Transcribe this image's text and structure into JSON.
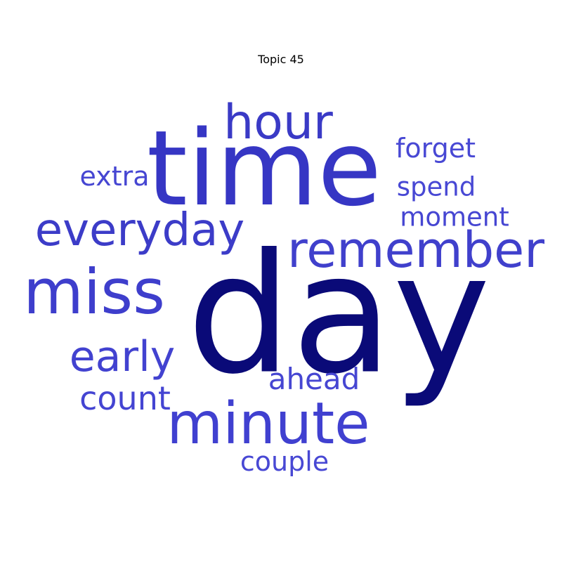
{
  "title": "Topic 45",
  "colors": {
    "primary": "#0a0a78",
    "secondary": "#3c3cc8",
    "tertiary": "#4646d2"
  },
  "words": {
    "day": "day",
    "time": "time",
    "remember": "remember",
    "miss": "miss",
    "minute": "minute",
    "everyday": "everyday",
    "hour": "hour",
    "early": "early",
    "count": "count",
    "ahead": "ahead",
    "extra": "extra",
    "forget": "forget",
    "spend": "spend",
    "moment": "moment",
    "couple": "couple"
  },
  "word_colors": {
    "day": "#0a0a78",
    "time": "#3636c4",
    "remember": "#4040cc",
    "miss": "#3e3ecc",
    "minute": "#4040d0",
    "everyday": "#3c3cc8",
    "hour": "#3a3ac6",
    "early": "#4242d0",
    "count": "#4444d2",
    "ahead": "#4646d2",
    "extra": "#4646d2",
    "forget": "#4848d4",
    "spend": "#4848d4",
    "moment": "#4646d2",
    "couple": "#4848d4"
  }
}
